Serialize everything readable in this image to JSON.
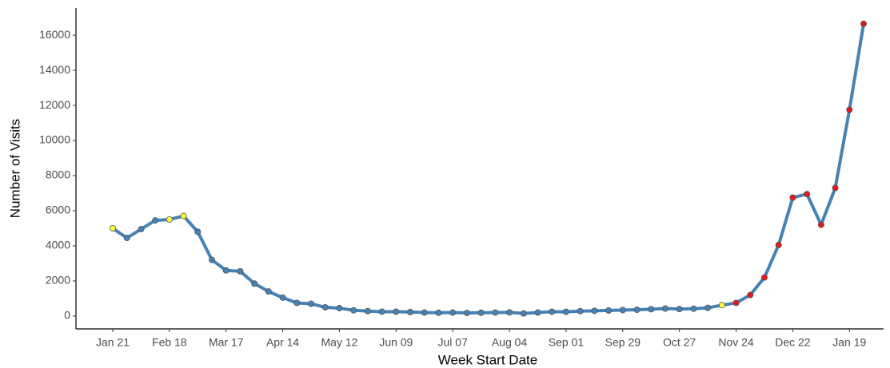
{
  "chart_data": {
    "type": "line",
    "xlabel": "Week Start Date",
    "ylabel": "Number of Visits",
    "categories": [
      "Jan 21",
      null,
      null,
      null,
      "Feb 18",
      null,
      null,
      null,
      "Mar 17",
      null,
      null,
      null,
      "Apr 14",
      null,
      null,
      null,
      "May 12",
      null,
      null,
      null,
      "Jun 09",
      null,
      null,
      null,
      "Jul 07",
      null,
      null,
      null,
      "Aug 04",
      null,
      null,
      null,
      "Sep 01",
      null,
      null,
      null,
      "Sep 29",
      null,
      null,
      null,
      "Oct 27",
      null,
      null,
      null,
      "Nov 24",
      null,
      null,
      null,
      "Dec 22",
      null,
      null,
      null,
      "Jan 19",
      null
    ],
    "series": [
      {
        "color": "#4682b4",
        "values": [
          5000,
          4450,
          4950,
          5450,
          5500,
          5700,
          4800,
          3200,
          2600,
          2550,
          1850,
          1400,
          1050,
          750,
          700,
          500,
          450,
          330,
          280,
          250,
          250,
          230,
          200,
          190,
          200,
          180,
          190,
          200,
          210,
          150,
          200,
          250,
          240,
          280,
          300,
          320,
          340,
          360,
          390,
          430,
          400,
          420,
          470,
          620,
          750,
          1200,
          2200,
          4050,
          6750,
          6950,
          5200,
          7300,
          11750,
          16650
        ],
        "point_colors": [
          "#ffff33",
          "#4682b4",
          "#4682b4",
          "#4682b4",
          "#ffff33",
          "#ffff33",
          "#4682b4",
          "#4682b4",
          "#4682b4",
          "#4682b4",
          "#4682b4",
          "#4682b4",
          "#4682b4",
          "#4682b4",
          "#4682b4",
          "#4682b4",
          "#4682b4",
          "#4682b4",
          "#4682b4",
          "#4682b4",
          "#4682b4",
          "#4682b4",
          "#4682b4",
          "#4682b4",
          "#4682b4",
          "#4682b4",
          "#4682b4",
          "#4682b4",
          "#4682b4",
          "#4682b4",
          "#4682b4",
          "#4682b4",
          "#4682b4",
          "#4682b4",
          "#4682b4",
          "#4682b4",
          "#4682b4",
          "#4682b4",
          "#4682b4",
          "#4682b4",
          "#4682b4",
          "#4682b4",
          "#4682b4",
          "#ffff33",
          "#e41a1c",
          "#e41a1c",
          "#e41a1c",
          "#e41a1c",
          "#e41a1c",
          "#e41a1c",
          "#e41a1c",
          "#e41a1c",
          "#e41a1c",
          "#e41a1c"
        ]
      }
    ],
    "ylim": [
      -730,
      17550
    ],
    "yticks": [
      0,
      2000,
      4000,
      6000,
      8000,
      10000,
      12000,
      14000,
      16000
    ],
    "grid": false
  }
}
